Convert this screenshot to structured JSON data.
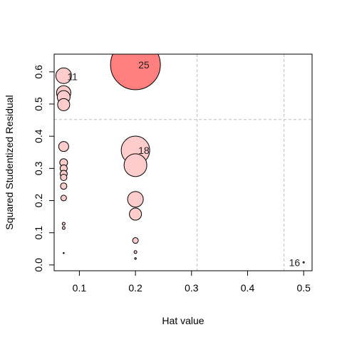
{
  "chart_data": {
    "type": "scatter",
    "title": "",
    "xlabel": "Hat value",
    "ylabel": "Squared Studentized Residual",
    "xlim": [
      0.055,
      0.515
    ],
    "ylim": [
      -0.018,
      0.655
    ],
    "x_ticks": [
      0.1,
      0.2,
      0.3,
      0.4,
      0.5
    ],
    "x_tick_labels": [
      "0.1",
      "0.2",
      "0.3",
      "0.4",
      "0.5"
    ],
    "y_ticks": [
      0.0,
      0.1,
      0.2,
      0.3,
      0.4,
      0.5,
      0.6
    ],
    "y_tick_labels": [
      "0.0",
      "0.1",
      "0.2",
      "0.3",
      "0.4",
      "0.5",
      "0.6"
    ],
    "reference_lines": {
      "vertical": [
        0.31,
        0.465
      ],
      "horizontal": [
        0.452
      ]
    },
    "bubble_scale": "area proportional to Cook's distance",
    "colors": {
      "bubble_fill": "#ffcccc",
      "highlight_fill": "#ff7f7f",
      "stroke": "#000000",
      "ref_line": "#bebebe"
    },
    "points": [
      {
        "x": 0.2,
        "y": 0.622,
        "r": 35,
        "label": "25",
        "highlight": true
      },
      {
        "x": 0.072,
        "y": 0.588,
        "r": 11,
        "label": "11",
        "highlight": false
      },
      {
        "x": 0.072,
        "y": 0.535,
        "r": 10,
        "label": "",
        "highlight": false
      },
      {
        "x": 0.072,
        "y": 0.522,
        "r": 9,
        "label": "",
        "highlight": false
      },
      {
        "x": 0.072,
        "y": 0.498,
        "r": 8.5,
        "label": "",
        "highlight": false
      },
      {
        "x": 0.072,
        "y": 0.368,
        "r": 7,
        "label": "",
        "highlight": false
      },
      {
        "x": 0.072,
        "y": 0.318,
        "r": 5.5,
        "label": "",
        "highlight": false
      },
      {
        "x": 0.072,
        "y": 0.3,
        "r": 5,
        "label": "",
        "highlight": false
      },
      {
        "x": 0.072,
        "y": 0.283,
        "r": 5,
        "label": "",
        "highlight": false
      },
      {
        "x": 0.072,
        "y": 0.272,
        "r": 4.5,
        "label": "",
        "highlight": false
      },
      {
        "x": 0.072,
        "y": 0.245,
        "r": 4.5,
        "label": "",
        "highlight": false
      },
      {
        "x": 0.072,
        "y": 0.208,
        "r": 4,
        "label": "",
        "highlight": false
      },
      {
        "x": 0.072,
        "y": 0.128,
        "r": 2,
        "label": "",
        "highlight": false
      },
      {
        "x": 0.072,
        "y": 0.115,
        "r": 2,
        "label": "",
        "highlight": false
      },
      {
        "x": 0.072,
        "y": 0.037,
        "r": 0.8,
        "label": "",
        "highlight": false
      },
      {
        "x": 0.2,
        "y": 0.356,
        "r": 20,
        "label": "18",
        "highlight": false
      },
      {
        "x": 0.2,
        "y": 0.31,
        "r": 16,
        "label": "",
        "highlight": false
      },
      {
        "x": 0.2,
        "y": 0.204,
        "r": 11,
        "label": "",
        "highlight": false
      },
      {
        "x": 0.2,
        "y": 0.158,
        "r": 8.5,
        "label": "",
        "highlight": false
      },
      {
        "x": 0.2,
        "y": 0.076,
        "r": 4,
        "label": "",
        "highlight": false
      },
      {
        "x": 0.2,
        "y": 0.04,
        "r": 2,
        "label": "",
        "highlight": false
      },
      {
        "x": 0.2,
        "y": 0.02,
        "r": 1.2,
        "label": "",
        "highlight": false
      },
      {
        "x": 0.5,
        "y": 0.008,
        "r": 1,
        "label": "16",
        "highlight": false
      }
    ]
  }
}
